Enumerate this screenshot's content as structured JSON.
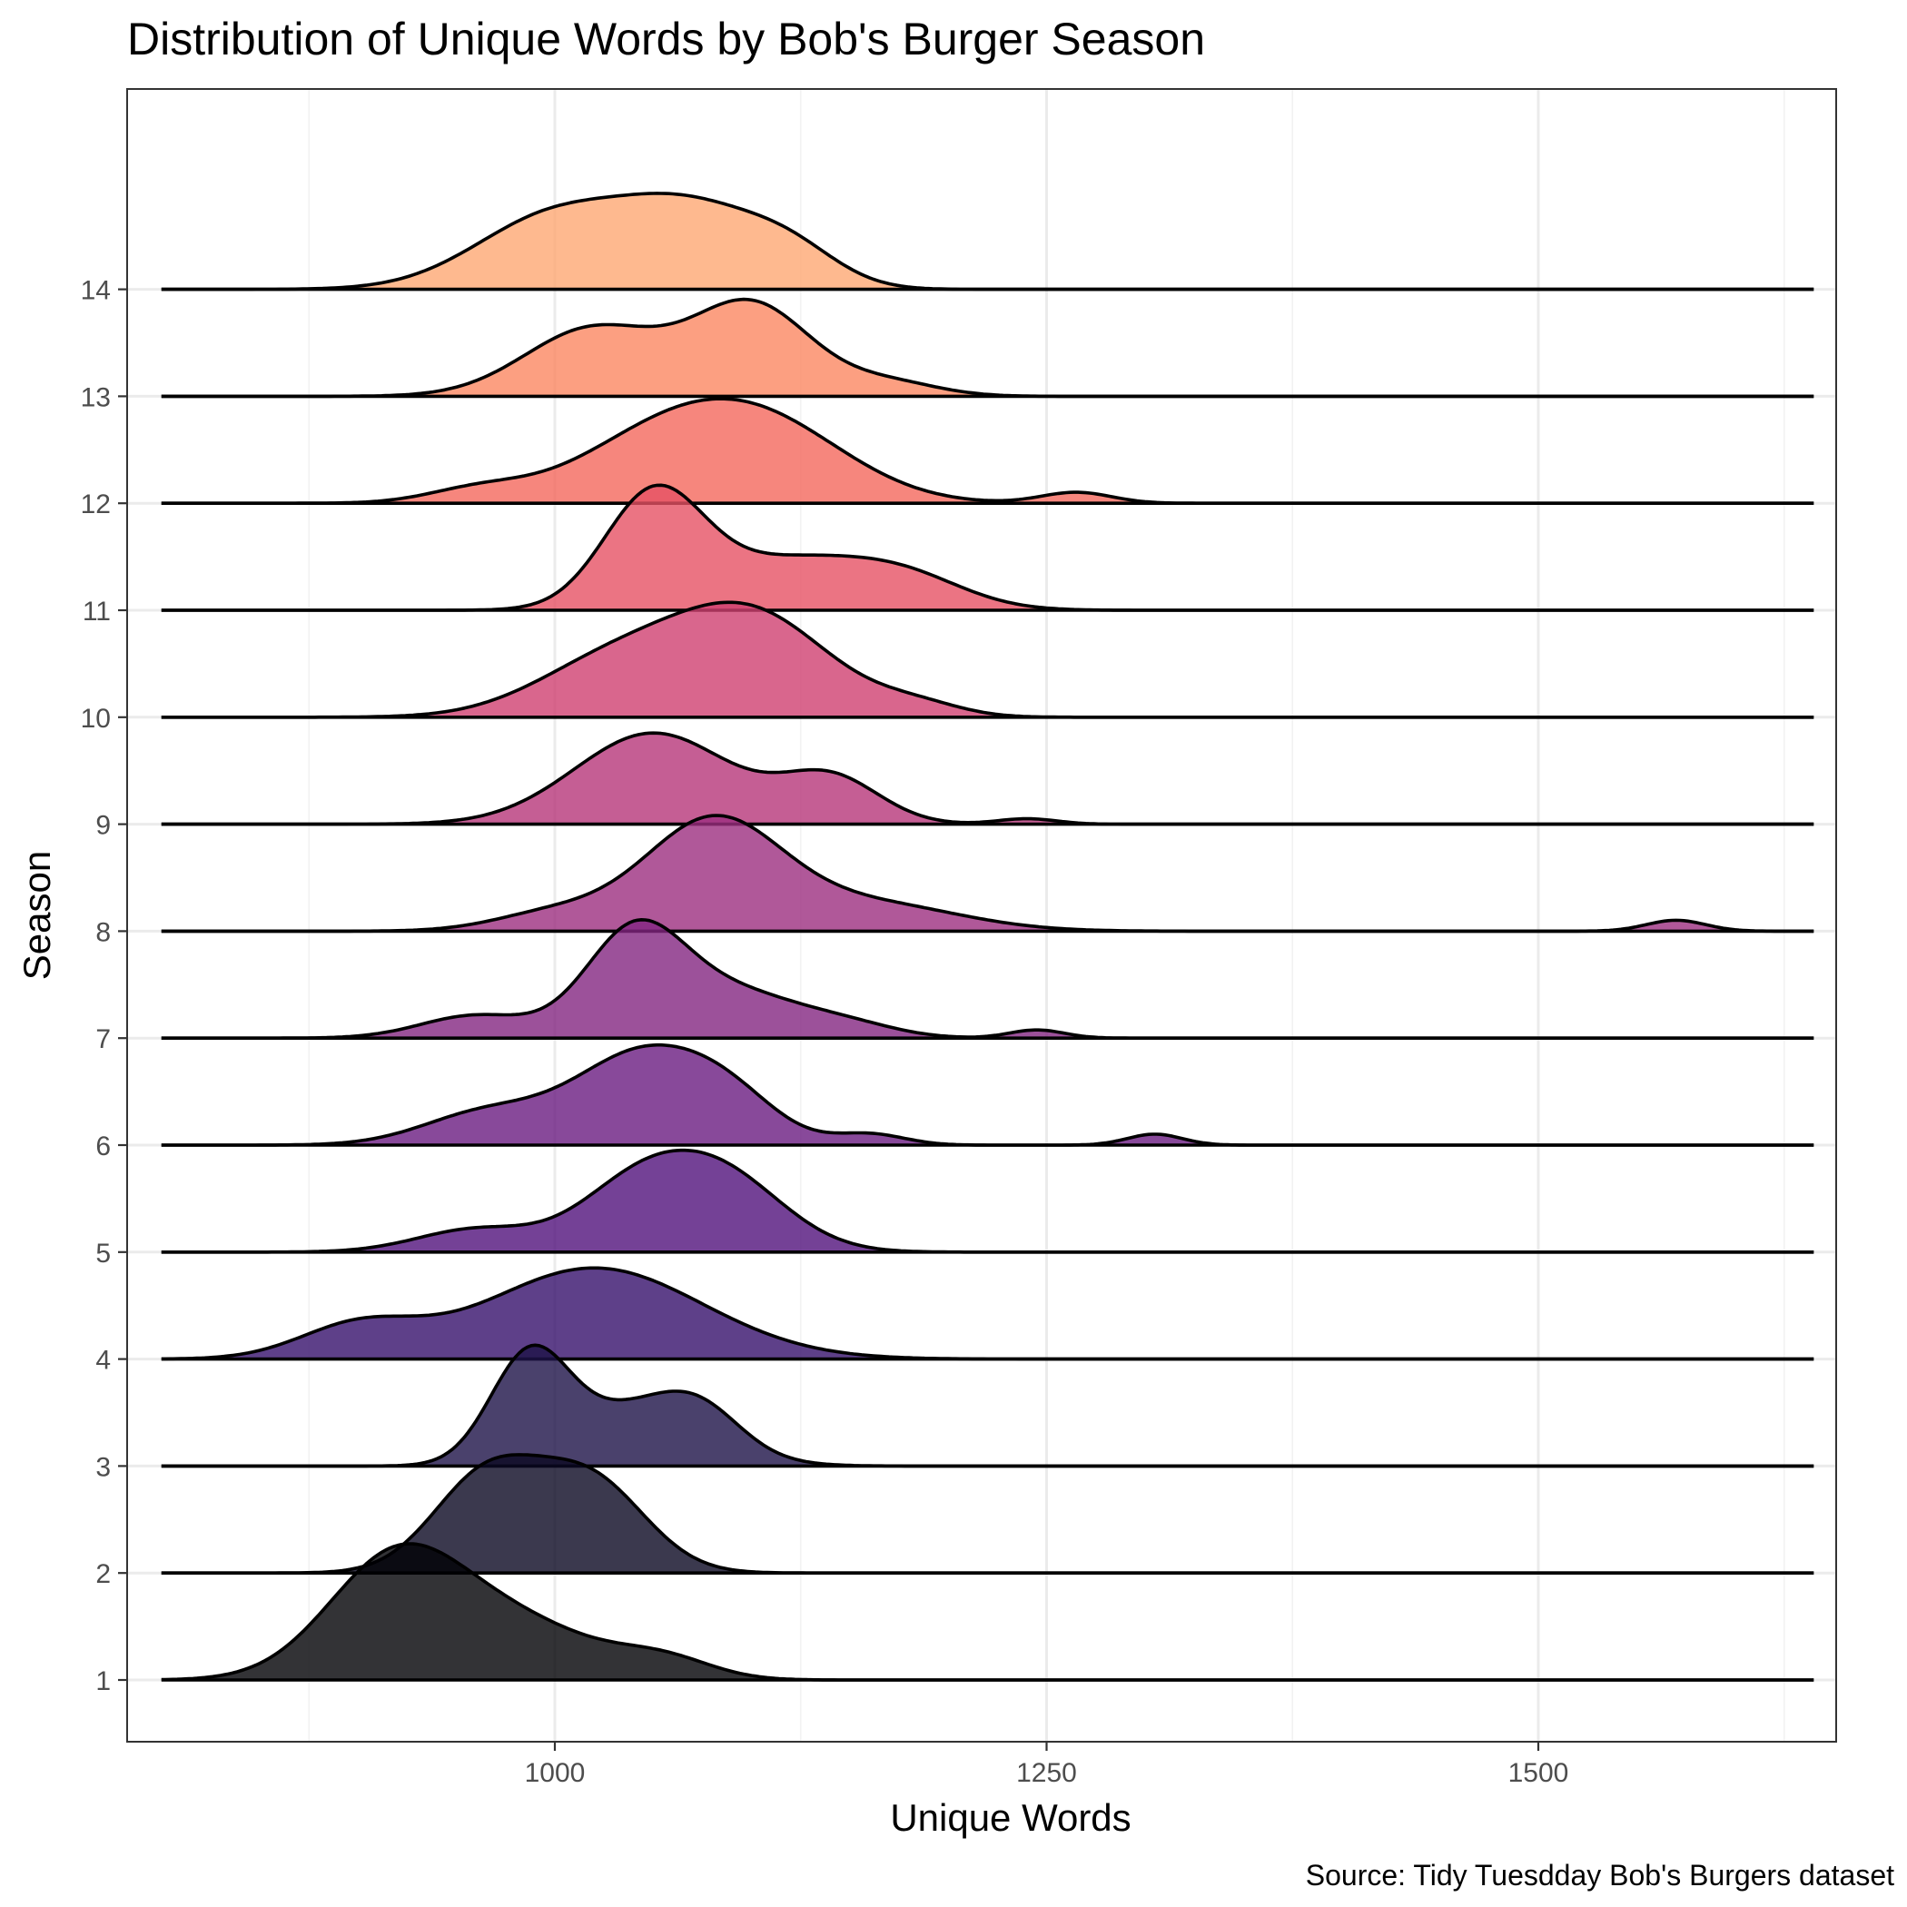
{
  "chart_data": {
    "type": "ridgeline",
    "title": "Distribution of Unique Words by Bob's Burger Season",
    "xlabel": "Unique Words",
    "ylabel": "Season",
    "caption": "Source: Tidy Tuesdday Bob's Burgers dataset",
    "xlim": [
      780,
      1665
    ],
    "xrange_data": [
      800,
      1640
    ],
    "x_ticks": [
      1000,
      1250,
      1500
    ],
    "x_minor": [
      875,
      1125,
      1375,
      1625
    ],
    "y_ticks": [
      "1",
      "2",
      "3",
      "4",
      "5",
      "6",
      "7",
      "8",
      "9",
      "10",
      "11",
      "12",
      "13",
      "14"
    ],
    "grid": true,
    "series": [
      {
        "name": "1",
        "color": "#000004",
        "components": [
          [
            920,
            35,
            1.35
          ],
          [
            985,
            38,
            0.55
          ],
          [
            1055,
            25,
            0.22
          ]
        ]
      },
      {
        "name": "2",
        "color": "#0A0822",
        "components": [
          [
            965,
            27,
            1.05
          ],
          [
            1018,
            28,
            1.0
          ]
        ]
      },
      {
        "name": "3",
        "color": "#1D1147",
        "components": [
          [
            987,
            20,
            1.15
          ],
          [
            1045,
            35,
            0.65
          ],
          [
            1075,
            20,
            0.3
          ]
        ]
      },
      {
        "name": "4",
        "color": "#36106B",
        "components": [
          [
            900,
            30,
            0.35
          ],
          [
            1020,
            55,
            1.0
          ]
        ]
      },
      {
        "name": "5",
        "color": "#51127C",
        "components": [
          [
            960,
            30,
            0.25
          ],
          [
            1040,
            30,
            0.65
          ],
          [
            1085,
            32,
            0.8
          ]
        ]
      },
      {
        "name": "6",
        "color": "#6A1C81",
        "components": [
          [
            965,
            32,
            0.35
          ],
          [
            1045,
            35,
            1.0
          ],
          [
            1090,
            25,
            0.35
          ],
          [
            1160,
            18,
            0.12
          ],
          [
            1305,
            14,
            0.12
          ]
        ]
      },
      {
        "name": "7",
        "color": "#832681",
        "components": [
          [
            960,
            28,
            0.25
          ],
          [
            1040,
            25,
            1.1
          ],
          [
            1090,
            35,
            0.5
          ],
          [
            1150,
            25,
            0.12
          ],
          [
            1245,
            14,
            0.09
          ]
        ]
      },
      {
        "name": "8",
        "color": "#9C2E7F",
        "components": [
          [
            1000,
            30,
            0.2
          ],
          [
            1080,
            35,
            1.2
          ],
          [
            1160,
            45,
            0.3
          ],
          [
            1570,
            15,
            0.12
          ]
        ]
      },
      {
        "name": "9",
        "color": "#B63679",
        "components": [
          [
            1050,
            40,
            1.0
          ],
          [
            1140,
            25,
            0.5
          ],
          [
            1240,
            15,
            0.06
          ]
        ]
      },
      {
        "name": "10",
        "color": "#CF4070",
        "components": [
          [
            1030,
            40,
            0.6
          ],
          [
            1100,
            40,
            1.1
          ],
          [
            1185,
            22,
            0.12
          ]
        ]
      },
      {
        "name": "11",
        "color": "#E65164",
        "components": [
          [
            1050,
            25,
            1.2
          ],
          [
            1120,
            45,
            0.55
          ],
          [
            1180,
            30,
            0.25
          ]
        ]
      },
      {
        "name": "12",
        "color": "#F4685C",
        "components": [
          [
            960,
            25,
            0.13
          ],
          [
            1070,
            50,
            0.95
          ],
          [
            1120,
            40,
            0.35
          ],
          [
            1265,
            18,
            0.12
          ]
        ]
      },
      {
        "name": "13",
        "color": "#FB8761",
        "components": [
          [
            1020,
            35,
            0.75
          ],
          [
            1100,
            30,
            1.0
          ],
          [
            1170,
            25,
            0.15
          ]
        ]
      },
      {
        "name": "14",
        "color": "#FEA873",
        "components": [
          [
            1000,
            40,
            0.8
          ],
          [
            1070,
            35,
            0.8
          ],
          [
            1120,
            25,
            0.35
          ]
        ]
      }
    ]
  }
}
